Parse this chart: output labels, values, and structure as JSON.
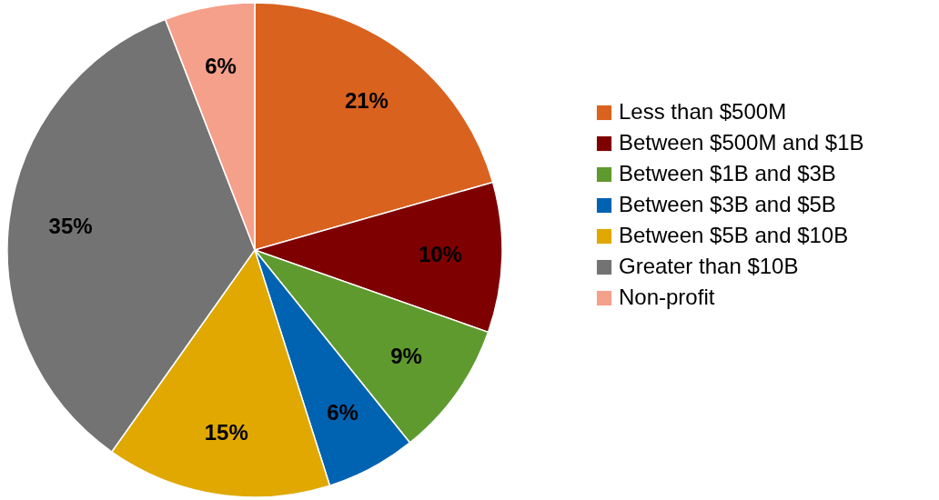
{
  "chart_data": {
    "type": "pie",
    "categories": [
      "Less than $500M",
      "Between $500M and $1B",
      "Between $1B and $3B",
      "Between $3B and $5B",
      "Between $5B and $10B",
      "Greater than $10B",
      "Non-profit"
    ],
    "values": [
      21,
      10,
      9,
      6,
      15,
      35,
      6
    ],
    "colors": [
      "#d9621e",
      "#7f0000",
      "#5f9a2e",
      "#0063b1",
      "#e0a800",
      "#737373",
      "#f5a08a"
    ],
    "value_labels": [
      "21%",
      "10%",
      "9%",
      "6%",
      "15%",
      "35%",
      "6%"
    ],
    "legend": "right"
  }
}
